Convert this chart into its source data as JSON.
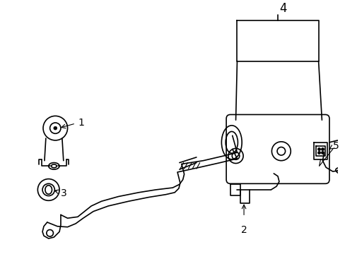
{
  "background_color": "#ffffff",
  "line_color": "#000000",
  "line_width": 1.2,
  "thin_lw": 0.8,
  "label_fontsize": 10
}
